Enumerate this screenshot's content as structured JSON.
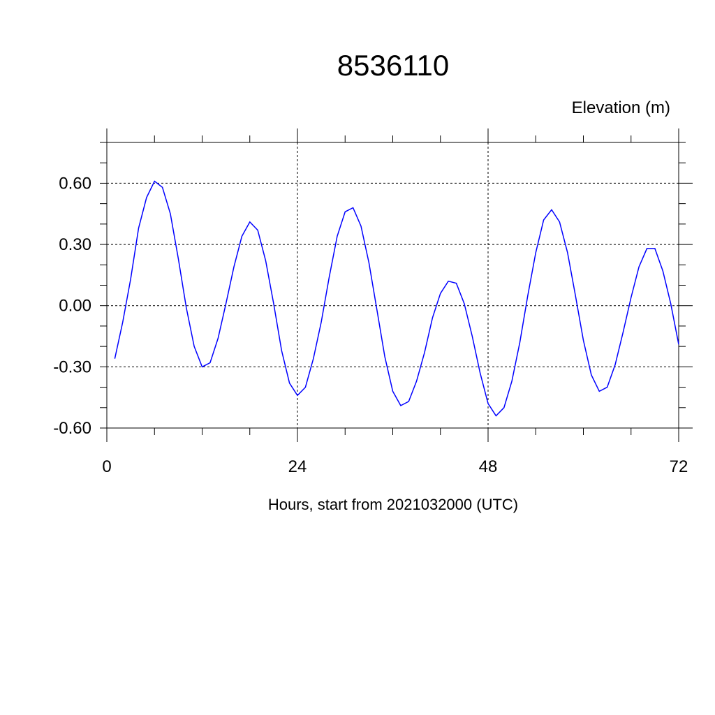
{
  "chart_data": {
    "type": "line",
    "title": "8536110",
    "ylabel": "Elevation (m)",
    "xlabel": "Hours, start from 2021032000 (UTC)",
    "xlim": [
      0,
      72
    ],
    "ylim": [
      -0.6,
      0.8
    ],
    "xticks": [
      0,
      24,
      48,
      72
    ],
    "xtick_labels": [
      "0",
      "24",
      "48",
      "72"
    ],
    "yticks": [
      0.6,
      0.3,
      0.0,
      -0.3,
      -0.6
    ],
    "ytick_labels": [
      "0.60",
      "0.30",
      "0.00",
      "-0.30",
      "-0.60"
    ],
    "grid": true,
    "line_color": "#0000ff",
    "series": [
      {
        "x": [
          1,
          2,
          3,
          4,
          5,
          6,
          7,
          8,
          9,
          10,
          11,
          12,
          13,
          14,
          15,
          16,
          17,
          18,
          19,
          20,
          21,
          22,
          23,
          24,
          25,
          26,
          27,
          28,
          29,
          30,
          31,
          32,
          33,
          34,
          35,
          36,
          37,
          38,
          39,
          40,
          41,
          42,
          43,
          44,
          45,
          46,
          47,
          48,
          49,
          50,
          51,
          52,
          53,
          54,
          55,
          56,
          57,
          58,
          59,
          60,
          61,
          62,
          63,
          64,
          65,
          66,
          67,
          68,
          69,
          70,
          71,
          72
        ],
        "values": [
          -0.26,
          -0.08,
          0.13,
          0.38,
          0.53,
          0.61,
          0.58,
          0.45,
          0.23,
          -0.01,
          -0.2,
          -0.3,
          -0.28,
          -0.16,
          0.01,
          0.19,
          0.34,
          0.41,
          0.37,
          0.22,
          0.01,
          -0.22,
          -0.38,
          -0.44,
          -0.4,
          -0.26,
          -0.08,
          0.14,
          0.34,
          0.46,
          0.48,
          0.39,
          0.21,
          -0.02,
          -0.25,
          -0.42,
          -0.49,
          -0.47,
          -0.37,
          -0.23,
          -0.06,
          0.06,
          0.12,
          0.11,
          0.01,
          -0.15,
          -0.33,
          -0.48,
          -0.54,
          -0.5,
          -0.37,
          -0.18,
          0.05,
          0.26,
          0.42,
          0.47,
          0.41,
          0.26,
          0.05,
          -0.17,
          -0.34,
          -0.42,
          -0.4,
          -0.29,
          -0.13,
          0.04,
          0.19,
          0.28,
          0.28,
          0.17,
          0.01,
          -0.19
        ]
      }
    ]
  }
}
